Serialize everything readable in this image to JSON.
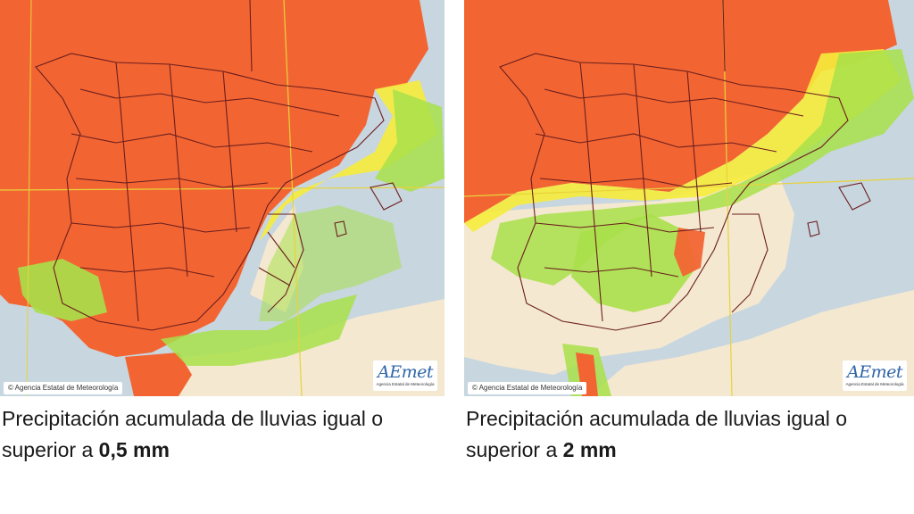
{
  "maps": [
    {
      "caption_text": "Precipitación acumulada de lluvias igual o superior a ",
      "caption_value": "0,5 mm",
      "credit": "© Agencia Estatal de Meteorología",
      "logo_text": "AEmet",
      "logo_subtext": "Agencia Estatal de Meteorología"
    },
    {
      "caption_text": "Precipitación acumulada de lluvias igual o superior a ",
      "caption_value": "2 mm",
      "credit": "© Agencia Estatal de Meteorología",
      "logo_text": "AEmet",
      "logo_subtext": "Agencia Estatal de Meteorología"
    }
  ],
  "colors": {
    "sea": "#c8d6df",
    "land_dry": "#f4e8d0",
    "high_probability": "#f26533",
    "medium_probability": "#f6ec3b",
    "low_probability": "#a8e04a",
    "borders": "#6b1d1d",
    "graticule": "#e7d33a",
    "logo_blue": "#2f66a8"
  }
}
